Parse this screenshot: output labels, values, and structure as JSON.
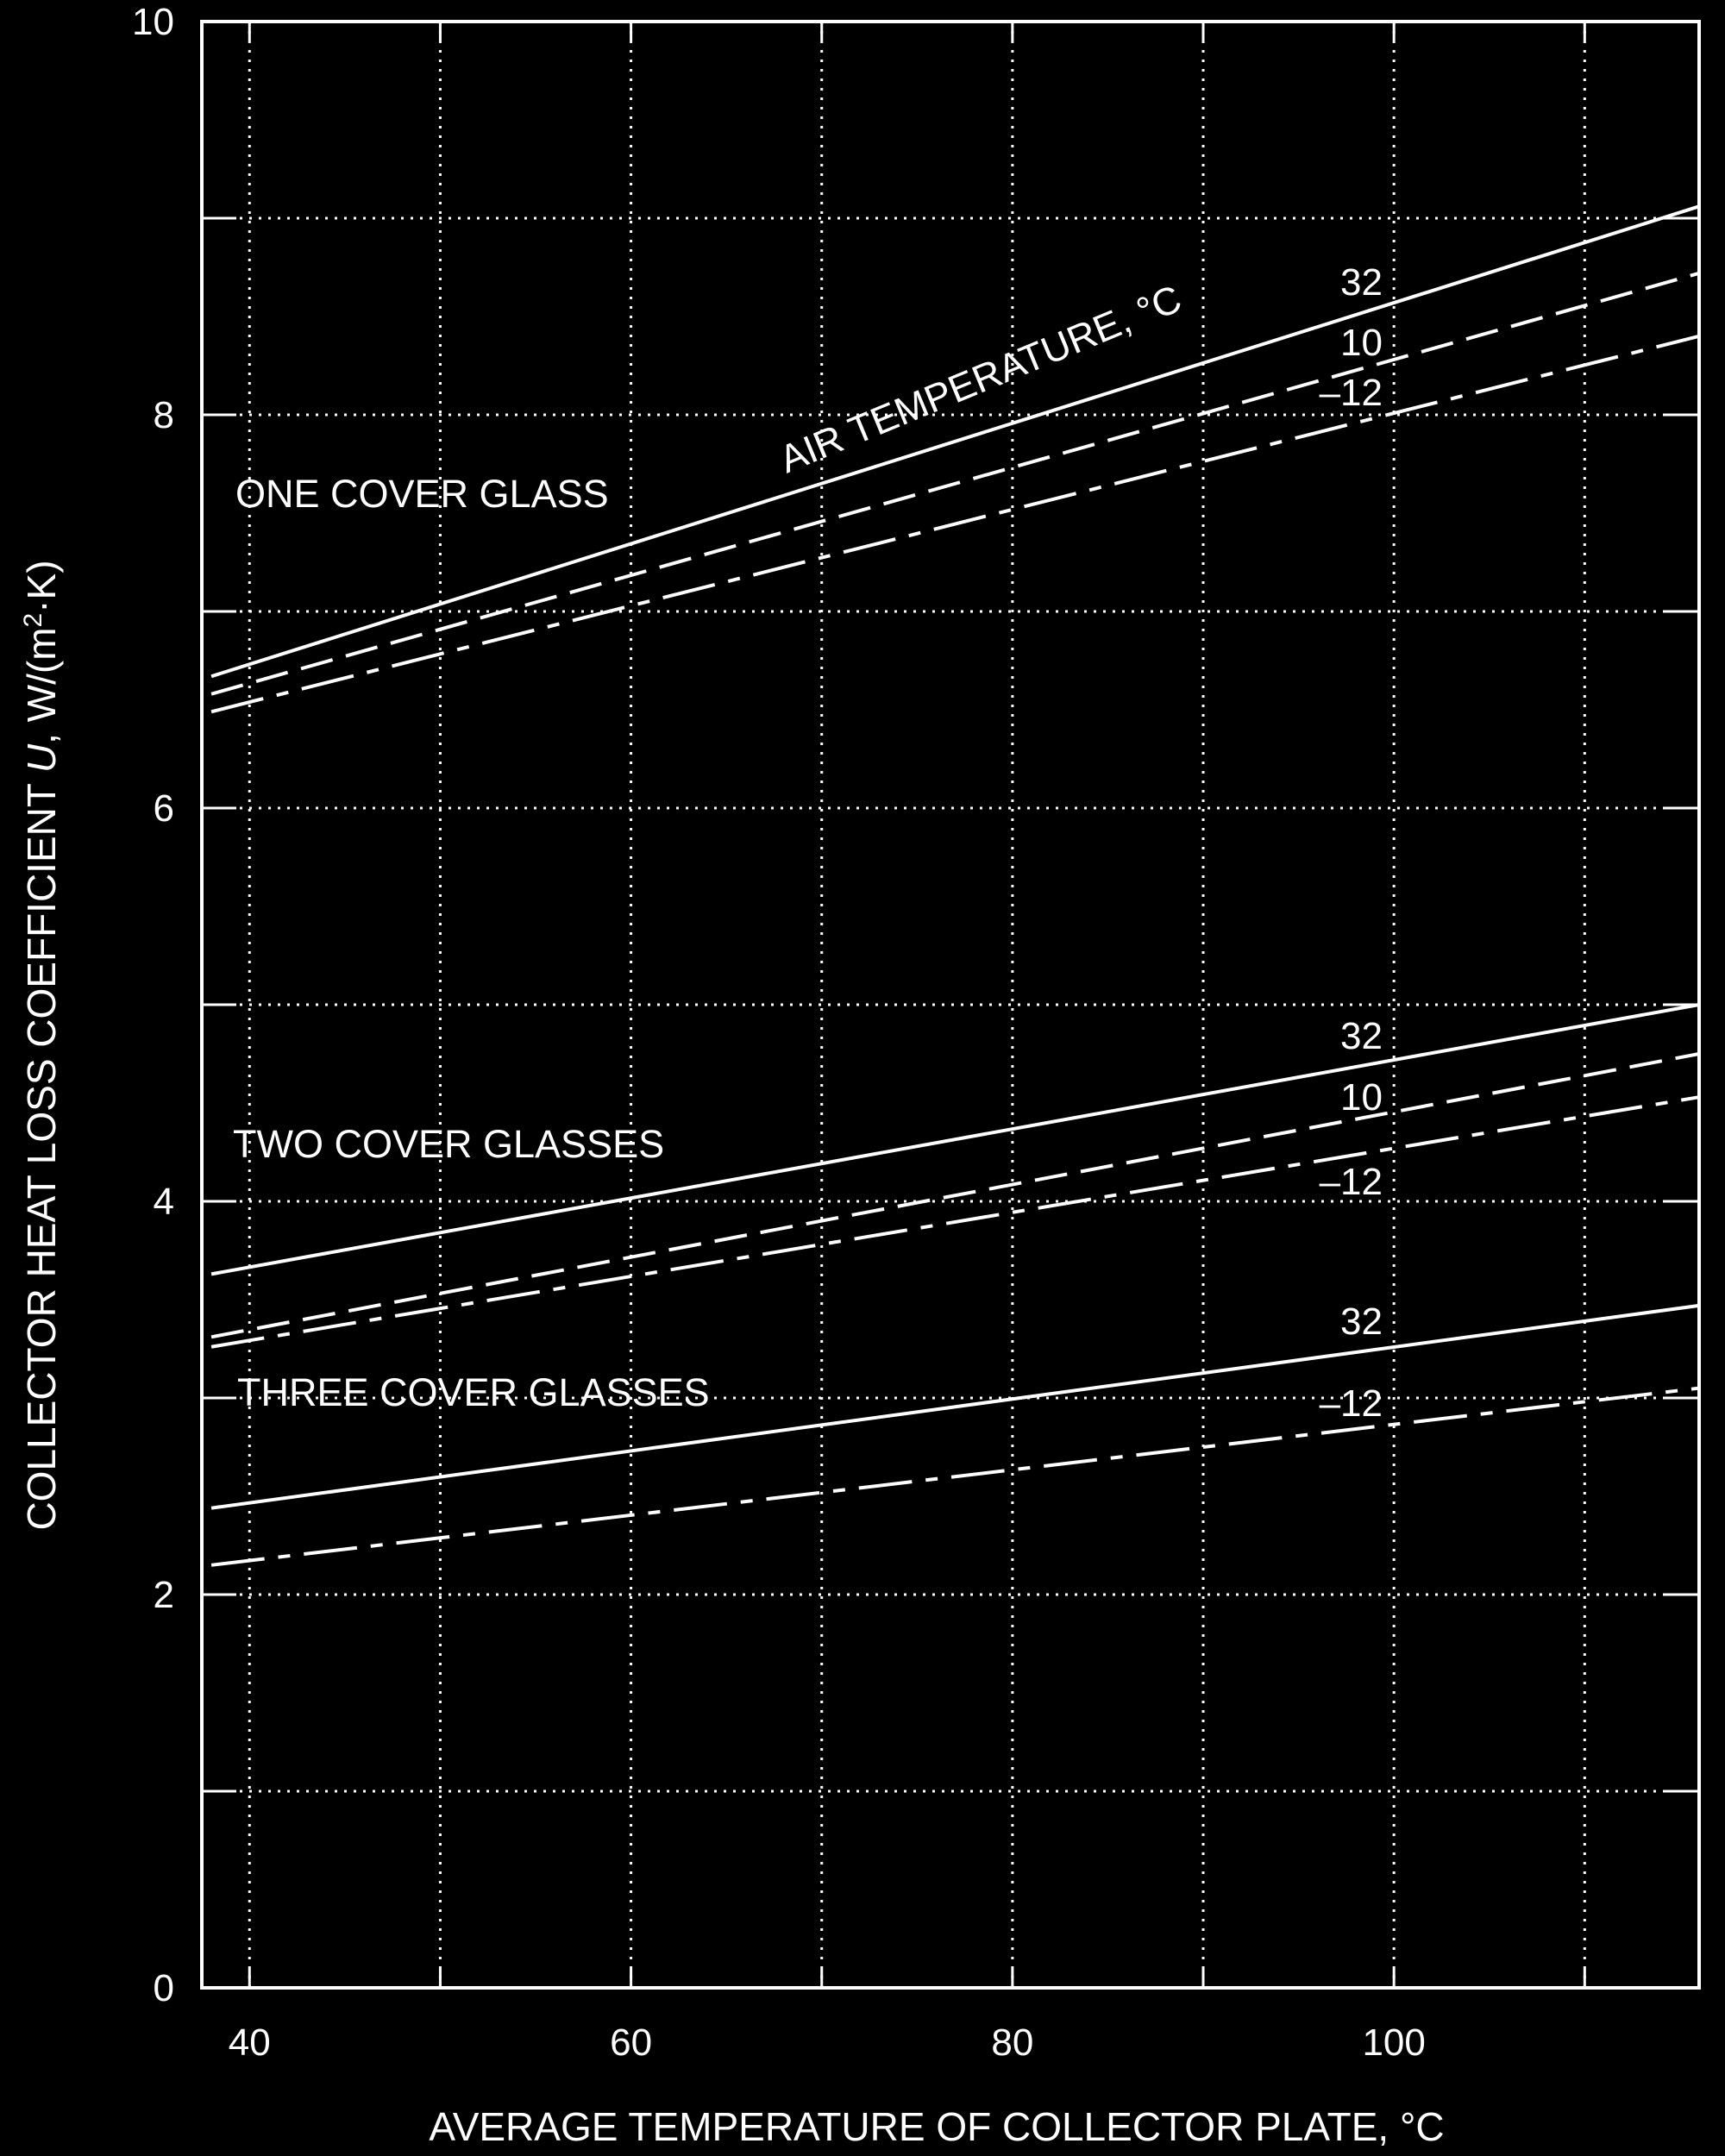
{
  "chart_data": {
    "type": "line",
    "xlabel": "AVERAGE TEMPERATURE OF COLLECTOR PLATE, °C",
    "ylabel_parts": {
      "before": "COLLECTOR HEAT LOSS COEFFICIENT ",
      "italic": "U",
      "middle": ", W/(m",
      "superscript": "2",
      "after": "·K)"
    },
    "xlim": [
      37.5,
      116
    ],
    "ylim": [
      0,
      10
    ],
    "x_ticks": [
      40,
      60,
      80,
      100
    ],
    "y_ticks": [
      0,
      2,
      4,
      6,
      8,
      10
    ],
    "grid": true,
    "annotation": "AIR TEMPERATURE, °C",
    "groups": [
      {
        "label": "ONE COVER GLASS",
        "series": [
          {
            "name": "32",
            "style": "solid",
            "x": [
              38,
              116
            ],
            "y": [
              6.67,
              9.06
            ]
          },
          {
            "name": "10",
            "style": "dashed",
            "x": [
              38,
              116
            ],
            "y": [
              6.58,
              8.72
            ]
          },
          {
            "name": "–12",
            "style": "dashdot",
            "x": [
              38,
              116
            ],
            "y": [
              6.49,
              8.4
            ]
          }
        ]
      },
      {
        "label": "TWO COVER GLASSES",
        "series": [
          {
            "name": "32",
            "style": "solid",
            "x": [
              38,
              116
            ],
            "y": [
              3.63,
              5.0
            ]
          },
          {
            "name": "10",
            "style": "dashed",
            "x": [
              38,
              116
            ],
            "y": [
              3.31,
              4.75
            ]
          },
          {
            "name": "–12",
            "style": "dashdot",
            "x": [
              38,
              116
            ],
            "y": [
              3.26,
              4.53
            ]
          }
        ]
      },
      {
        "label": "THREE COVER GLASSES",
        "series": [
          {
            "name": "32",
            "style": "solid",
            "x": [
              38,
              116
            ],
            "y": [
              2.44,
              3.47
            ]
          },
          {
            "name": "–12",
            "style": "dashdot",
            "x": [
              38,
              116
            ],
            "y": [
              2.15,
              3.05
            ]
          }
        ]
      }
    ],
    "colors": {
      "background": "#000000",
      "foreground": "#ffffff"
    }
  }
}
